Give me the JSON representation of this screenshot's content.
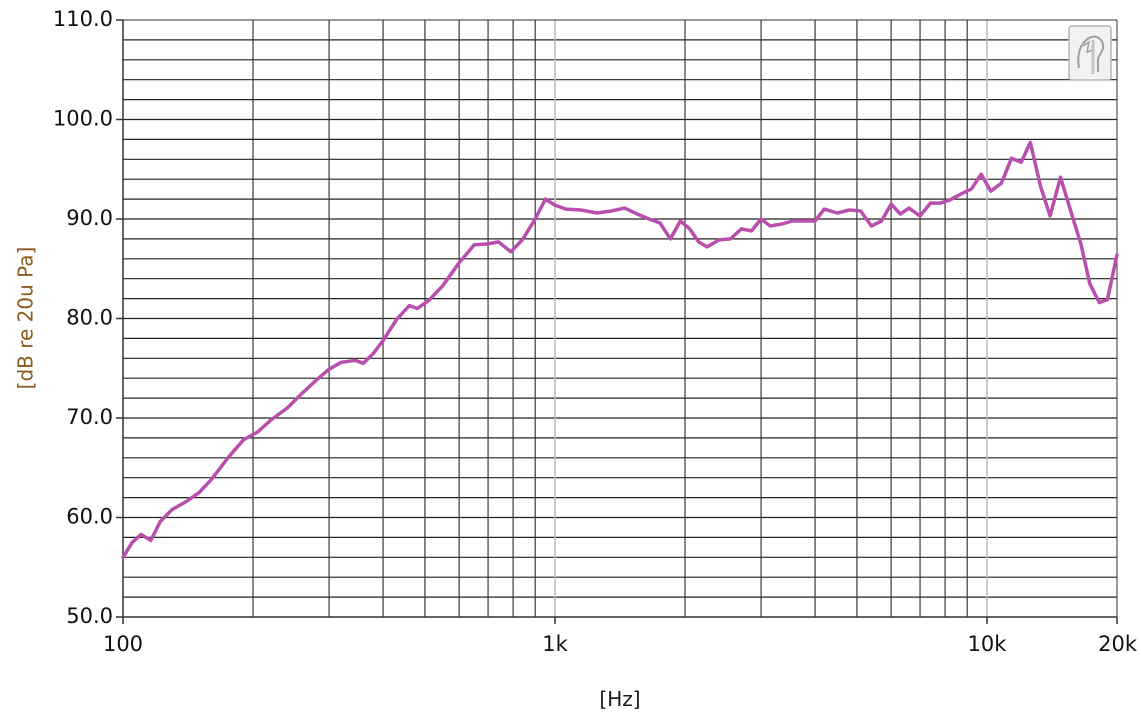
{
  "chart_data": {
    "type": "line",
    "xscale": "log",
    "xlim": [
      100,
      20000
    ],
    "ylim": [
      50,
      110
    ],
    "xlabel": "[Hz]",
    "ylabel": "[dB re 20u Pa]",
    "x_ticks": [
      {
        "value": 100,
        "label": "100"
      },
      {
        "value": 1000,
        "label": "1k"
      },
      {
        "value": 10000,
        "label": "10k"
      },
      {
        "value": 20000,
        "label": "20k"
      }
    ],
    "y_ticks": [
      {
        "value": 50,
        "label": "50.0"
      },
      {
        "value": 60,
        "label": "60.0"
      },
      {
        "value": 70,
        "label": "70.0"
      },
      {
        "value": 80,
        "label": "80.0"
      },
      {
        "value": 90,
        "label": "90.0"
      },
      {
        "value": 100,
        "label": "100.0"
      },
      {
        "value": 110,
        "label": "110.0"
      }
    ],
    "grid": true,
    "series": [
      {
        "color": "#b84fac",
        "points": [
          [
            100,
            56.0
          ],
          [
            105,
            57.5
          ],
          [
            110,
            58.3
          ],
          [
            116,
            57.7
          ],
          [
            122,
            59.6
          ],
          [
            130,
            60.8
          ],
          [
            140,
            61.6
          ],
          [
            150,
            62.5
          ],
          [
            160,
            63.8
          ],
          [
            175,
            66.0
          ],
          [
            190,
            67.8
          ],
          [
            205,
            68.6
          ],
          [
            220,
            69.8
          ],
          [
            240,
            71.0
          ],
          [
            260,
            72.5
          ],
          [
            280,
            73.8
          ],
          [
            300,
            74.9
          ],
          [
            320,
            75.6
          ],
          [
            345,
            75.8
          ],
          [
            360,
            75.5
          ],
          [
            380,
            76.5
          ],
          [
            400,
            77.8
          ],
          [
            430,
            79.9
          ],
          [
            460,
            81.3
          ],
          [
            480,
            81.0
          ],
          [
            510,
            81.8
          ],
          [
            550,
            83.3
          ],
          [
            600,
            85.6
          ],
          [
            650,
            87.4
          ],
          [
            700,
            87.5
          ],
          [
            740,
            87.7
          ],
          [
            790,
            86.7
          ],
          [
            840,
            87.9
          ],
          [
            900,
            90.0
          ],
          [
            950,
            92.0
          ],
          [
            1000,
            91.4
          ],
          [
            1060,
            91.0
          ],
          [
            1150,
            90.9
          ],
          [
            1250,
            90.6
          ],
          [
            1350,
            90.8
          ],
          [
            1450,
            91.1
          ],
          [
            1550,
            90.5
          ],
          [
            1650,
            90.0
          ],
          [
            1750,
            89.6
          ],
          [
            1850,
            88.0
          ],
          [
            1950,
            89.8
          ],
          [
            2050,
            89.0
          ],
          [
            2150,
            87.7
          ],
          [
            2250,
            87.2
          ],
          [
            2400,
            87.9
          ],
          [
            2550,
            88.0
          ],
          [
            2700,
            89.0
          ],
          [
            2850,
            88.8
          ],
          [
            3000,
            90.0
          ],
          [
            3150,
            89.3
          ],
          [
            3350,
            89.5
          ],
          [
            3550,
            89.8
          ],
          [
            3800,
            89.8
          ],
          [
            4000,
            89.8
          ],
          [
            4200,
            91.0
          ],
          [
            4500,
            90.6
          ],
          [
            4800,
            90.9
          ],
          [
            5100,
            90.8
          ],
          [
            5400,
            89.3
          ],
          [
            5700,
            89.8
          ],
          [
            6000,
            91.5
          ],
          [
            6300,
            90.5
          ],
          [
            6600,
            91.1
          ],
          [
            7000,
            90.3
          ],
          [
            7400,
            91.6
          ],
          [
            7800,
            91.6
          ],
          [
            8200,
            91.9
          ],
          [
            8700,
            92.5
          ],
          [
            9200,
            93.0
          ],
          [
            9700,
            94.5
          ],
          [
            10200,
            92.8
          ],
          [
            10800,
            93.6
          ],
          [
            11400,
            96.1
          ],
          [
            12000,
            95.7
          ],
          [
            12600,
            97.7
          ],
          [
            13300,
            93.3
          ],
          [
            14000,
            90.3
          ],
          [
            14800,
            94.2
          ],
          [
            15700,
            90.5
          ],
          [
            16500,
            87.5
          ],
          [
            17300,
            83.5
          ],
          [
            18200,
            81.6
          ],
          [
            19000,
            81.9
          ],
          [
            20000,
            86.4
          ]
        ]
      }
    ]
  }
}
